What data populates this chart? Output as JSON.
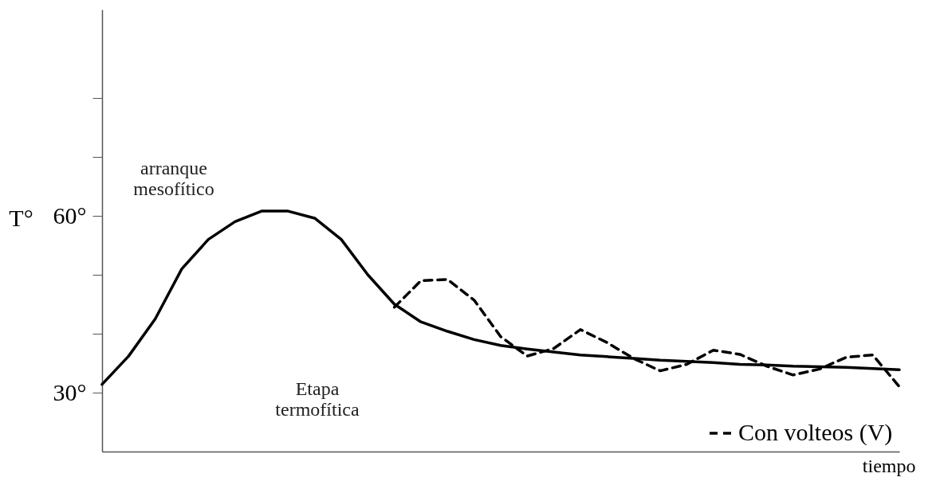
{
  "chart_data": {
    "type": "line",
    "xlabel": "tiempo",
    "ylabel": "T°",
    "categories": [
      null,
      null,
      null,
      null,
      null,
      null,
      null,
      null,
      null,
      null,
      null,
      null,
      null,
      null,
      null,
      null,
      null,
      null,
      null,
      null,
      null,
      null,
      null,
      null,
      null,
      null,
      null,
      null,
      null,
      null,
      null
    ],
    "ylim": [
      20,
      95
    ],
    "yticks": [
      {
        "value": 30,
        "label": "30°"
      },
      {
        "value": 40,
        "label": null
      },
      {
        "value": 50,
        "label": null
      },
      {
        "value": 60,
        "label": "60°"
      },
      {
        "value": 70,
        "label": null
      },
      {
        "value": 80,
        "label": null
      }
    ],
    "tick_labels": "y",
    "grid": false,
    "legend": "bottom right",
    "series": [
      {
        "color": "#000000",
        "line_style": "solid",
        "values": [
          31.4,
          36.2,
          42.5,
          51,
          56,
          59,
          60.8,
          60.8,
          59.6,
          56,
          50,
          45,
          42,
          40.4,
          39,
          38,
          37.4,
          36.9,
          36.4,
          36.1,
          35.8,
          35.5,
          35.3,
          35.1,
          34.8,
          34.7,
          34.5,
          34.4,
          34.3,
          34.1,
          33.9
        ]
      },
      {
        "name": "Con volteos (V)",
        "color": "#000000",
        "line_style": "dashed",
        "values": [
          null,
          null,
          null,
          null,
          null,
          null,
          null,
          null,
          null,
          null,
          null,
          44.5,
          49,
          49.2,
          45.7,
          39.5,
          36.2,
          37.5,
          40.7,
          38.5,
          35.8,
          33.7,
          34.8,
          37.2,
          36.5,
          34.5,
          33,
          34,
          36,
          36.4,
          31
        ]
      }
    ],
    "annotations": [
      "arranque\nmesofítico",
      "Etapa\ntermofítica"
    ]
  }
}
